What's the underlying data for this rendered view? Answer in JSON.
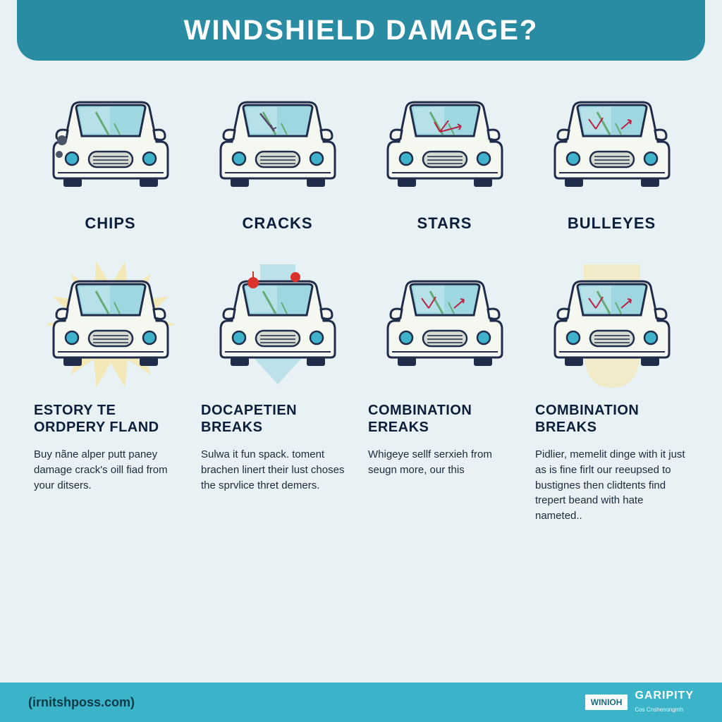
{
  "title": "WINDSHIELD DAMAGE?",
  "colors": {
    "banner": "#2a8ca3",
    "background": "#e8f1f4",
    "footer": "#3bb3c9",
    "text_dark": "#0b1e3a",
    "car_outline": "#1f2c4a",
    "car_fill": "#f5f8f1",
    "glass": "#9ed7e0",
    "glass_light": "#c2e6ec",
    "headlight": "#3fb2cc",
    "burst_yellow": "#f2e8b8",
    "burst_blue": "#bde1ea",
    "burst_cream": "#f1ebc9",
    "dot_red": "#d9342b"
  },
  "row1": [
    {
      "label": "CHIPS",
      "damage": "chip"
    },
    {
      "label": "CRACKS",
      "damage": "crack"
    },
    {
      "label": "STARS",
      "damage": "star"
    },
    {
      "label": "BULLEYES",
      "damage": "bulleye"
    }
  ],
  "row2": [
    {
      "heading": "ESTORY TE ORDPERY FLAND",
      "desc": "Buy nãne alper putt paney damage crack's oill fiad from your ditsers.",
      "burst": "starburst",
      "burst_color": "#f2e8b8",
      "damage": "none"
    },
    {
      "heading": "DOCAPETIEN BREAKS",
      "desc": "Sulwa it fun spack. toment brachen linert their lust choses the sprvlice thret demers.",
      "burst": "arrow",
      "burst_color": "#bde1ea",
      "damage": "dots"
    },
    {
      "heading": "COMBINATION EREAKS",
      "desc": "Whigeye sellf serxieh from seugn more, our this",
      "burst": "none",
      "burst_color": "",
      "damage": "combo"
    },
    {
      "heading": "COMBINATION BREAKS",
      "desc": "Pidlier, memelit dinge with it just as is fine firlt our reeupsed to bustignes then clidtents find trepert beand with hate nameted..",
      "burst": "blob",
      "burst_color": "#f1ebc9",
      "damage": "combo"
    }
  ],
  "footer": {
    "url": "(irnitshposs.com)",
    "badge": "WINIOH",
    "brand": "GARIPITY",
    "brand_sub": "Cos Cnshenongmh"
  }
}
